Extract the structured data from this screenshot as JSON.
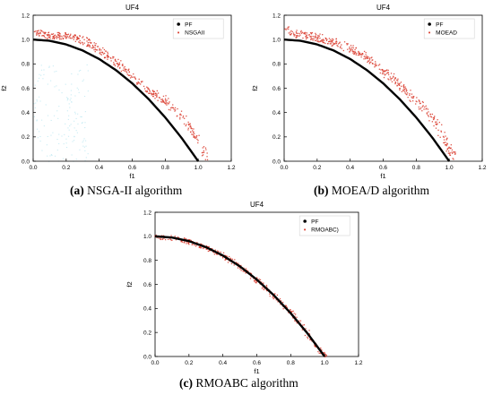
{
  "chart_data": [
    {
      "type": "scatter",
      "title": "UF4",
      "xlabel": "f1",
      "ylabel": "f2",
      "xlim": [
        0,
        1.2
      ],
      "ylim": [
        0,
        1.2
      ],
      "xticks": [
        "0.0",
        "0.2",
        "0.4",
        "0.6",
        "0.8",
        "1.0",
        "1.2"
      ],
      "yticks": [
        "0.0",
        "0.2",
        "0.4",
        "0.6",
        "0.8",
        "1.0",
        "1.2"
      ],
      "legend_position": "top-right",
      "caption_letter": "(a)",
      "caption_text": "NSGA-II algorithm",
      "series": [
        {
          "name": "PF",
          "kind": "line",
          "color": "#000000",
          "formula": "f2 = 1 - f1^2",
          "x": [
            0,
            0.1,
            0.2,
            0.3,
            0.4,
            0.5,
            0.6,
            0.7,
            0.8,
            0.9,
            1.0
          ],
          "y": [
            1.0,
            0.99,
            0.96,
            0.91,
            0.84,
            0.75,
            0.64,
            0.51,
            0.36,
            0.19,
            0.0
          ]
        },
        {
          "name": "NSGAII",
          "kind": "scatter",
          "color": "#d93a2b",
          "x": [
            0.02,
            0.05,
            0.08,
            0.22,
            0.3,
            0.4,
            0.5,
            0.6,
            0.7,
            0.8,
            0.9,
            0.95,
            1.0,
            1.04,
            1.05
          ],
          "y": [
            1.05,
            1.06,
            1.04,
            1.03,
            1.0,
            0.92,
            0.82,
            0.7,
            0.58,
            0.5,
            0.38,
            0.27,
            0.15,
            0.05,
            0.02
          ]
        }
      ]
    },
    {
      "type": "scatter",
      "title": "UF4",
      "xlabel": "f1",
      "ylabel": "f2",
      "xlim": [
        0,
        1.2
      ],
      "ylim": [
        0,
        1.2
      ],
      "xticks": [
        "0.0",
        "0.2",
        "0.4",
        "0.6",
        "0.8",
        "1.0",
        "1.2"
      ],
      "yticks": [
        "0.0",
        "0.2",
        "0.4",
        "0.6",
        "0.8",
        "1.0",
        "1.2"
      ],
      "legend_position": "top-right",
      "caption_letter": "(b)",
      "caption_text": "MOEA/D algorithm",
      "series": [
        {
          "name": "PF",
          "kind": "line",
          "color": "#000000",
          "formula": "f2 = 1 - f1^2",
          "x": [
            0,
            0.1,
            0.2,
            0.3,
            0.4,
            0.5,
            0.6,
            0.7,
            0.8,
            0.9,
            1.0
          ],
          "y": [
            1.0,
            0.99,
            0.96,
            0.91,
            0.84,
            0.75,
            0.64,
            0.51,
            0.36,
            0.19,
            0.0
          ]
        },
        {
          "name": "MOEAD",
          "kind": "scatter",
          "color": "#d93a2b",
          "x": [
            0.02,
            0.05,
            0.1,
            0.2,
            0.3,
            0.4,
            0.5,
            0.6,
            0.7,
            0.8,
            0.9,
            0.95,
            1.0,
            1.03
          ],
          "y": [
            1.08,
            1.06,
            1.04,
            1.02,
            0.98,
            0.93,
            0.85,
            0.75,
            0.62,
            0.5,
            0.35,
            0.22,
            0.1,
            0.04
          ]
        }
      ]
    },
    {
      "type": "scatter",
      "title": "UF4",
      "xlabel": "f1",
      "ylabel": "f2",
      "xlim": [
        0,
        1.2
      ],
      "ylim": [
        0,
        1.2
      ],
      "xticks": [
        "0.0",
        "0.2",
        "0.4",
        "0.6",
        "0.8",
        "1.0",
        "1.2"
      ],
      "yticks": [
        "0.0",
        "0.2",
        "0.4",
        "0.6",
        "0.8",
        "1.0",
        "1.2"
      ],
      "legend_position": "top-right",
      "caption_letter": "(c)",
      "caption_text": "RMOABC algorithm",
      "series": [
        {
          "name": "PF",
          "kind": "line",
          "color": "#000000",
          "formula": "f2 = 1 - f1^2",
          "x": [
            0,
            0.1,
            0.2,
            0.3,
            0.4,
            0.5,
            0.6,
            0.7,
            0.8,
            0.9,
            1.0
          ],
          "y": [
            1.0,
            0.99,
            0.96,
            0.91,
            0.84,
            0.75,
            0.64,
            0.51,
            0.36,
            0.19,
            0.0
          ]
        },
        {
          "name": "RMOABC)",
          "kind": "scatter",
          "color": "#d93a2b",
          "x": [
            0,
            0.1,
            0.2,
            0.3,
            0.4,
            0.5,
            0.6,
            0.7,
            0.8,
            0.9,
            1.0
          ],
          "y": [
            1.0,
            0.99,
            0.96,
            0.91,
            0.84,
            0.75,
            0.64,
            0.51,
            0.36,
            0.19,
            0.0
          ]
        }
      ]
    }
  ]
}
